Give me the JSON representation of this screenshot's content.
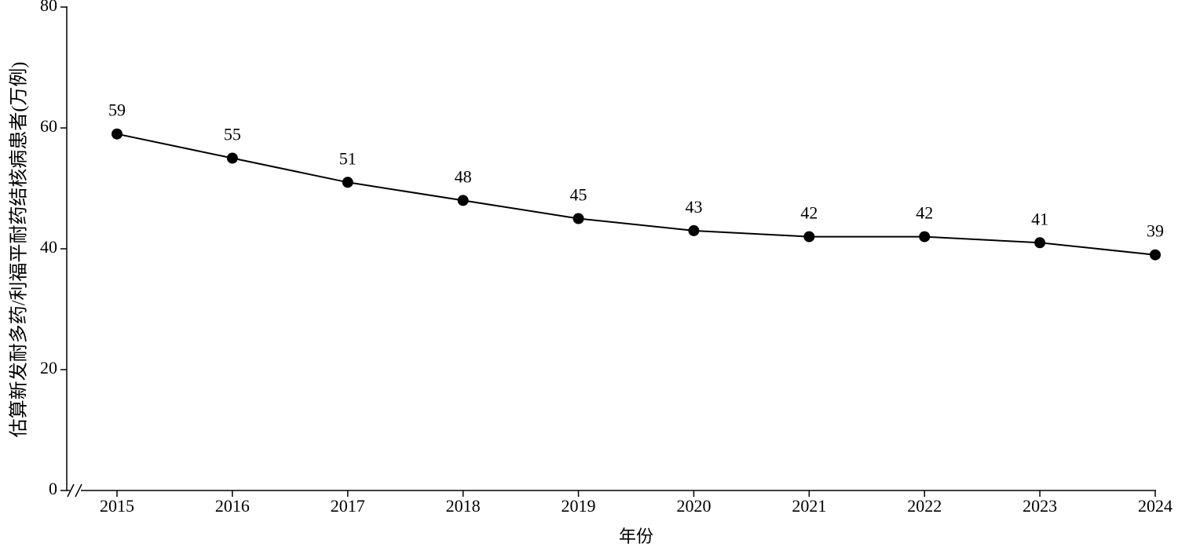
{
  "chart_data": {
    "type": "line",
    "x_label": "年份",
    "y_label": "估算新发耐多药/利福平耐药结核病患者(万例)",
    "categories": [
      "2015",
      "2016",
      "2017",
      "2018",
      "2019",
      "2020",
      "2021",
      "2022",
      "2023",
      "2024"
    ],
    "series": [
      {
        "name": "估算新发耐多药/利福平耐药结核病患者",
        "color": "#000000",
        "values": [
          59,
          55,
          51,
          48,
          45,
          43,
          42,
          42,
          41,
          39
        ]
      }
    ],
    "ylim": [
      0,
      80
    ],
    "yticks": [
      0,
      20,
      40,
      60,
      80
    ],
    "grid": false
  }
}
